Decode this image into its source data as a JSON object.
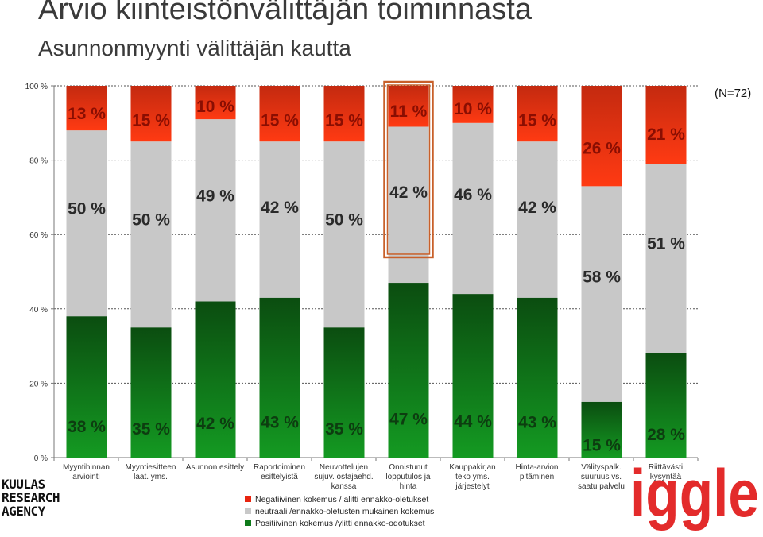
{
  "title": "Arvio kiinteistönvälittäjän toiminnasta",
  "subtitle": "Asunnonmyynti välittäjän kautta",
  "sample_note": "(N=72)",
  "colors": {
    "negative": "#e8240f",
    "neutral": "#c8c8c8",
    "positive": "#0f7a1a",
    "highlight": "#c8602a"
  },
  "logos": {
    "agency_lines": [
      "KUULAS",
      "RESEARCH",
      "AGENCY"
    ],
    "brand": "iggle"
  },
  "chart_data": {
    "type": "bar",
    "stacked": true,
    "ylim": [
      0,
      100
    ],
    "yticks": [
      "0 %",
      "20 %",
      "40 %",
      "60 %",
      "80 %",
      "100 %"
    ],
    "categories": [
      [
        "Myyntihinnan",
        "arviointi"
      ],
      [
        "Myyntiesitteen",
        "laat. yms."
      ],
      [
        "Asunnon esittely"
      ],
      [
        "Raportoiminen",
        "esittelyistä"
      ],
      [
        "Neuvottelujen",
        "sujuv. ostajaehd.",
        "kanssa"
      ],
      [
        "Onnistunut",
        "lopputulos ja",
        "hinta"
      ],
      [
        "Kauppakirjan",
        "teko yms.",
        "järjestelyt"
      ],
      [
        "Hinta-arvion",
        "pitäminen"
      ],
      [
        "Välityspalk.",
        "suuruus vs.",
        "saatu palvelu"
      ],
      [
        "Riittävästi",
        "kysyntää"
      ]
    ],
    "series": [
      {
        "name": "Positiivinen kokemus /ylitti ennakko-odotukset",
        "key": "positive",
        "values": [
          38,
          35,
          42,
          43,
          35,
          47,
          44,
          43,
          15,
          28
        ],
        "labels": [
          "38 %",
          "35 %",
          "42 %",
          "43 %",
          "35 %",
          "47 %",
          "44 %",
          "43 %",
          "15 %",
          "28 %"
        ]
      },
      {
        "name": "neutraali /ennakko-oletusten mukainen kokemus",
        "key": "neutral",
        "values": [
          50,
          50,
          49,
          42,
          50,
          42,
          46,
          42,
          58,
          51
        ],
        "labels": [
          "50 %",
          "50 %",
          "49 %",
          "42 %",
          "50 %",
          "42 %",
          "46 %",
          "42 %",
          "58 %",
          "51 %"
        ]
      },
      {
        "name": "Negatiivinen kokemus / alitti ennakko-oletukset",
        "key": "negative",
        "values": [
          13,
          15,
          10,
          15,
          15,
          11,
          10,
          15,
          26,
          21
        ],
        "labels": [
          "13 %",
          "15 %",
          "10 %",
          "15 %",
          "15 %",
          "11 %",
          "10 %",
          "15 %",
          "26 %",
          "21 %"
        ]
      }
    ],
    "highlighted_category_index": 5,
    "legend": {
      "placement": "bottom",
      "order": [
        "negative",
        "neutral",
        "positive"
      ]
    },
    "grid": true
  }
}
